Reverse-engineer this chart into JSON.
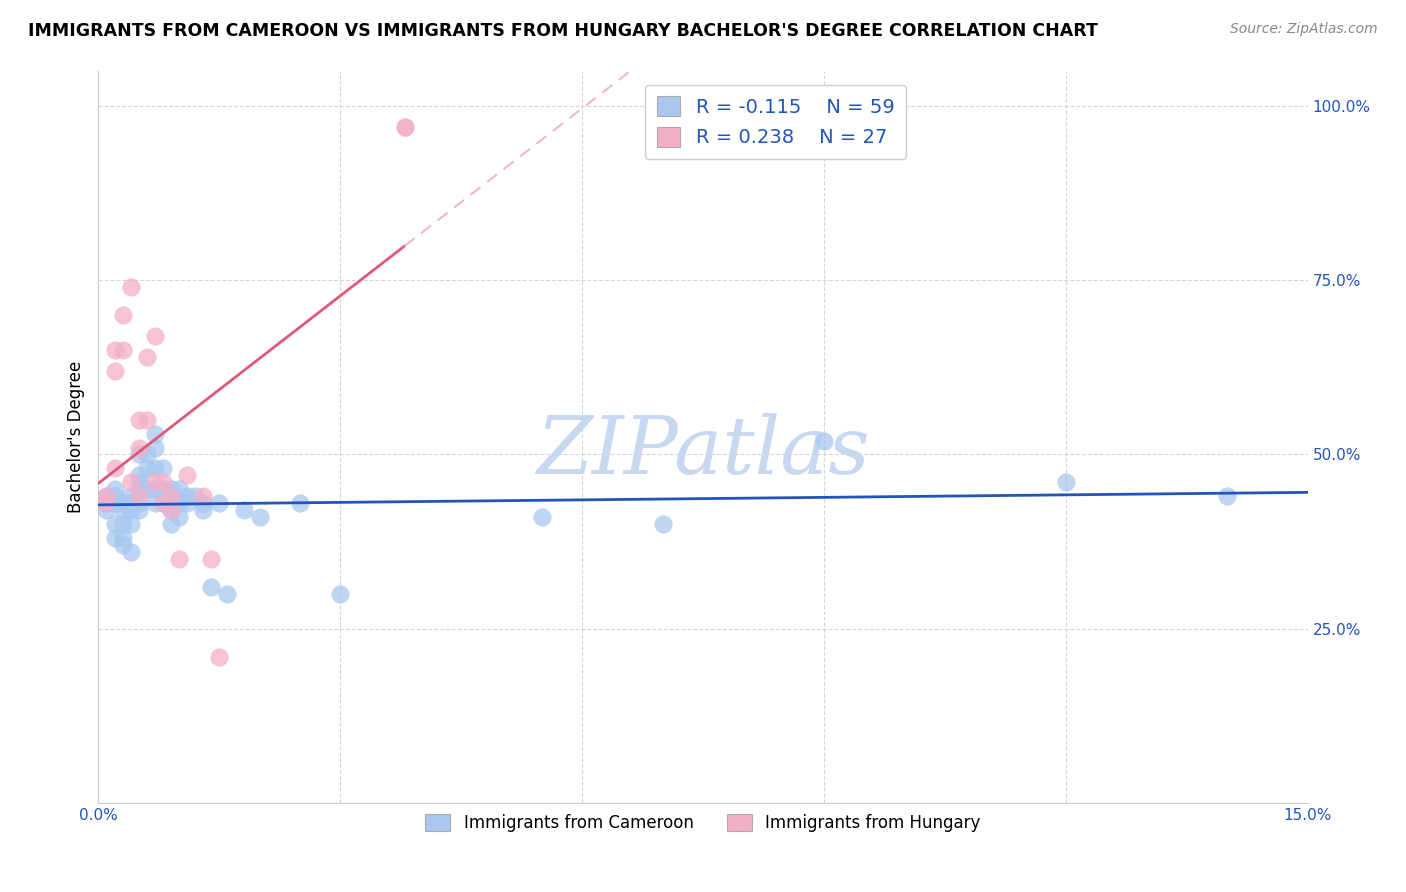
{
  "title": "IMMIGRANTS FROM CAMEROON VS IMMIGRANTS FROM HUNGARY BACHELOR'S DEGREE CORRELATION CHART",
  "source_text": "Source: ZipAtlas.com",
  "ylabel": "Bachelor's Degree",
  "xlim": [
    0.0,
    0.15
  ],
  "ylim": [
    0.0,
    1.05
  ],
  "xtick_positions": [
    0.0,
    0.03,
    0.06,
    0.09,
    0.12,
    0.15
  ],
  "xticklabels": [
    "0.0%",
    "",
    "",
    "",
    "",
    "15.0%"
  ],
  "ytick_positions": [
    0.0,
    0.25,
    0.5,
    0.75,
    1.0
  ],
  "yticklabels": [
    "",
    "25.0%",
    "50.0%",
    "75.0%",
    "100.0%"
  ],
  "cameroon_color": "#a8c8f0",
  "hungary_color": "#f4afc8",
  "cameroon_line_color": "#2255bb",
  "hungary_line_color": "#e05878",
  "hungary_dash_color": "#f0b8c8",
  "R_cameroon": -0.115,
  "N_cameroon": 59,
  "R_hungary": 0.238,
  "N_hungary": 27,
  "legend_label_cameroon": "Immigrants from Cameroon",
  "legend_label_hungary": "Immigrants from Hungary",
  "legend_text_color": "#2255bb",
  "watermark_color": "#c8d8f0",
  "cameroon_x": [
    0.001,
    0.001,
    0.001,
    0.002,
    0.002,
    0.002,
    0.002,
    0.002,
    0.003,
    0.003,
    0.003,
    0.003,
    0.003,
    0.004,
    0.004,
    0.004,
    0.004,
    0.004,
    0.005,
    0.005,
    0.005,
    0.005,
    0.005,
    0.005,
    0.006,
    0.006,
    0.006,
    0.007,
    0.007,
    0.007,
    0.007,
    0.007,
    0.008,
    0.008,
    0.008,
    0.009,
    0.009,
    0.009,
    0.009,
    0.01,
    0.01,
    0.01,
    0.011,
    0.011,
    0.012,
    0.013,
    0.013,
    0.014,
    0.015,
    0.016,
    0.018,
    0.02,
    0.025,
    0.03,
    0.055,
    0.07,
    0.09,
    0.12,
    0.14
  ],
  "cameroon_y": [
    0.44,
    0.43,
    0.42,
    0.45,
    0.44,
    0.43,
    0.4,
    0.38,
    0.43,
    0.42,
    0.4,
    0.38,
    0.37,
    0.44,
    0.43,
    0.42,
    0.4,
    0.36,
    0.5,
    0.47,
    0.46,
    0.45,
    0.43,
    0.42,
    0.5,
    0.48,
    0.45,
    0.53,
    0.51,
    0.48,
    0.45,
    0.43,
    0.48,
    0.45,
    0.43,
    0.45,
    0.43,
    0.42,
    0.4,
    0.45,
    0.43,
    0.41,
    0.44,
    0.43,
    0.44,
    0.43,
    0.42,
    0.31,
    0.43,
    0.3,
    0.42,
    0.41,
    0.43,
    0.3,
    0.41,
    0.4,
    0.52,
    0.46,
    0.44
  ],
  "hungary_x": [
    0.001,
    0.001,
    0.002,
    0.002,
    0.002,
    0.003,
    0.003,
    0.004,
    0.004,
    0.005,
    0.005,
    0.005,
    0.006,
    0.006,
    0.007,
    0.007,
    0.008,
    0.008,
    0.009,
    0.009,
    0.01,
    0.011,
    0.013,
    0.014,
    0.015,
    0.038,
    0.038
  ],
  "hungary_y": [
    0.44,
    0.43,
    0.65,
    0.62,
    0.48,
    0.7,
    0.65,
    0.74,
    0.46,
    0.55,
    0.51,
    0.44,
    0.55,
    0.64,
    0.67,
    0.46,
    0.46,
    0.43,
    0.44,
    0.42,
    0.35,
    0.47,
    0.44,
    0.35,
    0.21,
    0.97,
    0.97
  ]
}
